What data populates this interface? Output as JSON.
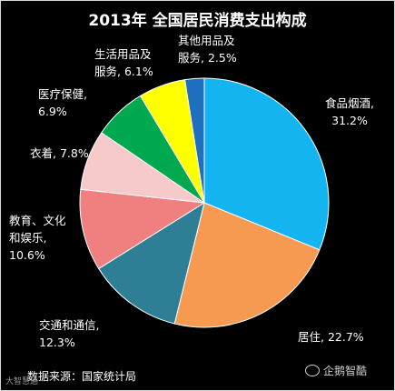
{
  "chart_data": {
    "type": "pie",
    "title": "2013年 全国居民消费支出构成",
    "slices": [
      {
        "label": "食品烟酒",
        "value": 31.2,
        "pct_text": "31.2%",
        "color": "#14b4f0"
      },
      {
        "label": "居住",
        "value": 22.7,
        "pct_text": "22.7%",
        "color": "#f59a50"
      },
      {
        "label": "交通和通信",
        "value": 12.3,
        "pct_text": "12.3%",
        "color": "#2e7f96"
      },
      {
        "label": "教育、文化和娱乐",
        "value": 10.6,
        "pct_text": "10.6%",
        "color": "#f08080"
      },
      {
        "label": "衣着",
        "value": 7.8,
        "pct_text": "7.8%",
        "color": "#f6caca"
      },
      {
        "label": "医疗保健",
        "value": 6.9,
        "pct_text": "6.9%",
        "color": "#00a850"
      },
      {
        "label": "生活用品及服务",
        "value": 6.1,
        "pct_text": "6.1%",
        "color": "#ffff00"
      },
      {
        "label": "其他用品及服务",
        "value": 2.5,
        "pct_text": "2.5%",
        "color": "#1f6fbf"
      }
    ]
  },
  "labels": [
    {
      "lines": [
        "食品烟酒,",
        "31.2%"
      ]
    },
    {
      "lines": [
        "居住, 22.7%"
      ]
    },
    {
      "lines": [
        "交通和通信,",
        "12.3%"
      ]
    },
    {
      "lines": [
        "教育、文化",
        "和娱乐,",
        "10.6%"
      ]
    },
    {
      "lines": [
        "衣着, 7.8%"
      ]
    },
    {
      "lines": [
        "医疗保健,",
        "6.9%"
      ]
    },
    {
      "lines": [
        "生活用品及",
        "服务, 6.1%"
      ]
    },
    {
      "lines": [
        "其他用品及",
        "服务, 2.5%"
      ]
    }
  ],
  "source": "数据来源：国家统计局",
  "watermark_left": "大智慧通",
  "watermark_right": "企鹅智酷"
}
